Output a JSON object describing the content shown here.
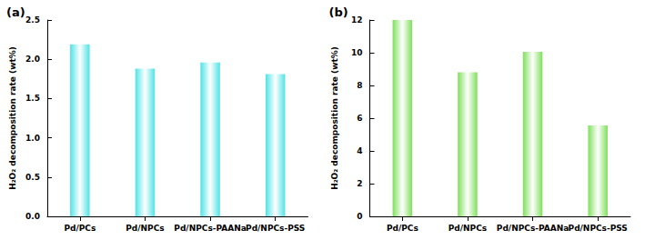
{
  "chart_data": [
    {
      "type": "bar",
      "title": "(a)",
      "categories": [
        "Pd/PCs",
        "Pd/NPCs",
        "Pd/NPCs-PAANa",
        "Pd/NPCs-PSS"
      ],
      "values": [
        2.19,
        1.88,
        1.96,
        1.81
      ],
      "color": "#4fe3e6",
      "y_label": "H₂O₂ decomposition rate (wt%)",
      "ylim": [
        0,
        2.5
      ],
      "yticks": [
        {
          "value": 0,
          "label": "0.0"
        },
        0.5,
        {
          "value": 1,
          "label": "1.0"
        },
        1.5,
        {
          "value": 2,
          "label": "2.0"
        },
        2.5
      ],
      "grid": false
    },
    {
      "type": "bar",
      "title": "(b)",
      "categories": [
        "Pd/PCs",
        "Pd/NPCs",
        "Pd/NPCs-PAANa",
        "Pd/NPCs-PSS"
      ],
      "values": [
        12.0,
        8.8,
        10.05,
        5.55
      ],
      "color": "#7ee05a",
      "y_label": "H₂O₂ decomposition rate (wt%)",
      "ylim": [
        0,
        12
      ],
      "yticks": [
        0,
        2,
        4,
        6,
        8,
        10,
        12
      ],
      "grid": false
    }
  ]
}
